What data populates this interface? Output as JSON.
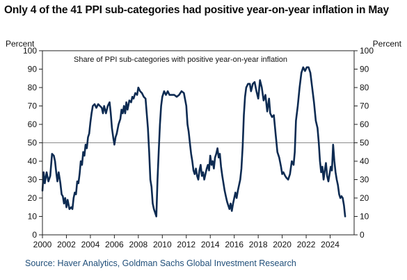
{
  "title": "Only 4 of the 41 PPI sub-categories had positive year-on-year inflation in May",
  "source": "Source: Haver Analytics, Goldman Sachs Global Investment Research",
  "chart_data": {
    "type": "line",
    "annotation": "Share of PPI sub-categories with positive year-on-year inflation",
    "ylabel_left": "Percent",
    "ylabel_right": "Percent",
    "ylim": [
      0,
      100
    ],
    "xlim": [
      2000,
      2026
    ],
    "y_ticks": [
      "0",
      "10",
      "20",
      "30",
      "40",
      "50",
      "60",
      "70",
      "80",
      "90",
      "100"
    ],
    "x_ticks": [
      "2000",
      "2002",
      "2004",
      "2006",
      "2008",
      "2010",
      "2012",
      "2014",
      "2016",
      "2018",
      "2020",
      "2022",
      "2024"
    ],
    "reference_line": 50,
    "series": [
      {
        "color": "#0d2b52",
        "points": [
          [
            2000.0,
            24
          ],
          [
            2000.1,
            34
          ],
          [
            2000.2,
            28
          ],
          [
            2000.35,
            34
          ],
          [
            2000.5,
            29
          ],
          [
            2000.65,
            32
          ],
          [
            2000.8,
            44
          ],
          [
            2000.95,
            43
          ],
          [
            2001.05,
            40
          ],
          [
            2001.15,
            34
          ],
          [
            2001.25,
            29
          ],
          [
            2001.35,
            34
          ],
          [
            2001.5,
            28
          ],
          [
            2001.6,
            22
          ],
          [
            2001.7,
            21
          ],
          [
            2001.8,
            17
          ],
          [
            2001.9,
            20
          ],
          [
            2002.0,
            15
          ],
          [
            2002.1,
            19
          ],
          [
            2002.25,
            14
          ],
          [
            2002.4,
            15
          ],
          [
            2002.5,
            14
          ],
          [
            2002.6,
            20
          ],
          [
            2002.7,
            23
          ],
          [
            2002.8,
            22
          ],
          [
            2002.9,
            29
          ],
          [
            2003.0,
            28
          ],
          [
            2003.1,
            33
          ],
          [
            2003.2,
            40
          ],
          [
            2003.3,
            38
          ],
          [
            2003.4,
            45
          ],
          [
            2003.5,
            43
          ],
          [
            2003.6,
            49
          ],
          [
            2003.7,
            47
          ],
          [
            2003.8,
            53
          ],
          [
            2003.9,
            55
          ],
          [
            2004.0,
            61
          ],
          [
            2004.1,
            66
          ],
          [
            2004.2,
            70
          ],
          [
            2004.35,
            71
          ],
          [
            2004.5,
            69
          ],
          [
            2004.65,
            71
          ],
          [
            2004.8,
            70
          ],
          [
            2004.95,
            69
          ],
          [
            2005.05,
            66
          ],
          [
            2005.15,
            70
          ],
          [
            2005.3,
            66
          ],
          [
            2005.45,
            70
          ],
          [
            2005.6,
            72
          ],
          [
            2005.7,
            66
          ],
          [
            2005.8,
            58
          ],
          [
            2005.9,
            53
          ],
          [
            2006.0,
            49
          ],
          [
            2006.1,
            53
          ],
          [
            2006.2,
            55
          ],
          [
            2006.35,
            60
          ],
          [
            2006.5,
            63
          ],
          [
            2006.6,
            68
          ],
          [
            2006.7,
            66
          ],
          [
            2006.8,
            70
          ],
          [
            2006.9,
            66
          ],
          [
            2007.0,
            72
          ],
          [
            2007.1,
            68
          ],
          [
            2007.25,
            73
          ],
          [
            2007.4,
            72
          ],
          [
            2007.5,
            75
          ],
          [
            2007.6,
            74
          ],
          [
            2007.75,
            77
          ],
          [
            2007.9,
            76
          ],
          [
            2008.0,
            80
          ],
          [
            2008.15,
            78
          ],
          [
            2008.3,
            77
          ],
          [
            2008.45,
            75
          ],
          [
            2008.6,
            74
          ],
          [
            2008.7,
            66
          ],
          [
            2008.8,
            58
          ],
          [
            2008.9,
            45
          ],
          [
            2009.0,
            30
          ],
          [
            2009.1,
            26
          ],
          [
            2009.2,
            17
          ],
          [
            2009.3,
            14
          ],
          [
            2009.4,
            12
          ],
          [
            2009.5,
            10
          ],
          [
            2009.6,
            30
          ],
          [
            2009.7,
            45
          ],
          [
            2009.8,
            60
          ],
          [
            2009.9,
            70
          ],
          [
            2010.0,
            75
          ],
          [
            2010.15,
            78
          ],
          [
            2010.3,
            76
          ],
          [
            2010.45,
            78
          ],
          [
            2010.6,
            76
          ],
          [
            2010.8,
            76
          ],
          [
            2011.0,
            76
          ],
          [
            2011.2,
            75
          ],
          [
            2011.4,
            76
          ],
          [
            2011.6,
            78
          ],
          [
            2011.8,
            77
          ],
          [
            2012.0,
            70
          ],
          [
            2012.1,
            60
          ],
          [
            2012.2,
            56
          ],
          [
            2012.3,
            50
          ],
          [
            2012.4,
            44
          ],
          [
            2012.5,
            40
          ],
          [
            2012.6,
            35
          ],
          [
            2012.7,
            33
          ],
          [
            2012.8,
            36
          ],
          [
            2012.9,
            32
          ],
          [
            2013.0,
            30
          ],
          [
            2013.1,
            35
          ],
          [
            2013.2,
            38
          ],
          [
            2013.3,
            32
          ],
          [
            2013.4,
            34
          ],
          [
            2013.5,
            30
          ],
          [
            2013.6,
            33
          ],
          [
            2013.7,
            36
          ],
          [
            2013.8,
            38
          ],
          [
            2013.9,
            35
          ],
          [
            2014.0,
            43
          ],
          [
            2014.1,
            38
          ],
          [
            2014.2,
            40
          ],
          [
            2014.3,
            36
          ],
          [
            2014.4,
            42
          ],
          [
            2014.5,
            44
          ],
          [
            2014.6,
            47
          ],
          [
            2014.7,
            42
          ],
          [
            2014.8,
            44
          ],
          [
            2014.9,
            37
          ],
          [
            2015.0,
            32
          ],
          [
            2015.1,
            28
          ],
          [
            2015.2,
            24
          ],
          [
            2015.3,
            21
          ],
          [
            2015.4,
            18
          ],
          [
            2015.5,
            16
          ],
          [
            2015.6,
            14
          ],
          [
            2015.7,
            17
          ],
          [
            2015.8,
            13
          ],
          [
            2015.9,
            17
          ],
          [
            2016.0,
            20
          ],
          [
            2016.1,
            23
          ],
          [
            2016.2,
            20
          ],
          [
            2016.3,
            24
          ],
          [
            2016.4,
            27
          ],
          [
            2016.5,
            30
          ],
          [
            2016.6,
            36
          ],
          [
            2016.7,
            48
          ],
          [
            2016.8,
            65
          ],
          [
            2016.9,
            75
          ],
          [
            2017.0,
            80
          ],
          [
            2017.15,
            82
          ],
          [
            2017.3,
            82
          ],
          [
            2017.4,
            78
          ],
          [
            2017.55,
            82
          ],
          [
            2017.7,
            83
          ],
          [
            2017.85,
            78
          ],
          [
            2018.0,
            74
          ],
          [
            2018.15,
            84
          ],
          [
            2018.3,
            80
          ],
          [
            2018.45,
            73
          ],
          [
            2018.6,
            76
          ],
          [
            2018.75,
            67
          ],
          [
            2018.9,
            74
          ],
          [
            2019.0,
            66
          ],
          [
            2019.15,
            64
          ],
          [
            2019.3,
            65
          ],
          [
            2019.45,
            55
          ],
          [
            2019.6,
            45
          ],
          [
            2019.75,
            42
          ],
          [
            2019.9,
            37
          ],
          [
            2020.0,
            33
          ],
          [
            2020.1,
            34
          ],
          [
            2020.25,
            32
          ],
          [
            2020.35,
            31
          ],
          [
            2020.5,
            30
          ],
          [
            2020.65,
            33
          ],
          [
            2020.8,
            40
          ],
          [
            2020.95,
            38
          ],
          [
            2021.05,
            45
          ],
          [
            2021.15,
            62
          ],
          [
            2021.3,
            70
          ],
          [
            2021.45,
            80
          ],
          [
            2021.6,
            88
          ],
          [
            2021.75,
            91
          ],
          [
            2021.9,
            89
          ],
          [
            2022.05,
            91
          ],
          [
            2022.2,
            91
          ],
          [
            2022.35,
            88
          ],
          [
            2022.5,
            80
          ],
          [
            2022.65,
            72
          ],
          [
            2022.8,
            62
          ],
          [
            2022.95,
            58
          ],
          [
            2023.05,
            50
          ],
          [
            2023.15,
            40
          ],
          [
            2023.25,
            34
          ],
          [
            2023.35,
            37
          ],
          [
            2023.45,
            30
          ],
          [
            2023.55,
            35
          ],
          [
            2023.65,
            39
          ],
          [
            2023.75,
            32
          ],
          [
            2023.85,
            29
          ],
          [
            2023.95,
            33
          ],
          [
            2024.05,
            37
          ],
          [
            2024.15,
            35
          ],
          [
            2024.25,
            49
          ],
          [
            2024.35,
            40
          ],
          [
            2024.45,
            34
          ],
          [
            2024.55,
            30
          ],
          [
            2024.65,
            27
          ],
          [
            2024.75,
            22
          ],
          [
            2024.85,
            20
          ],
          [
            2024.95,
            21
          ],
          [
            2025.05,
            20
          ],
          [
            2025.15,
            16
          ],
          [
            2025.25,
            10
          ]
        ]
      }
    ]
  }
}
